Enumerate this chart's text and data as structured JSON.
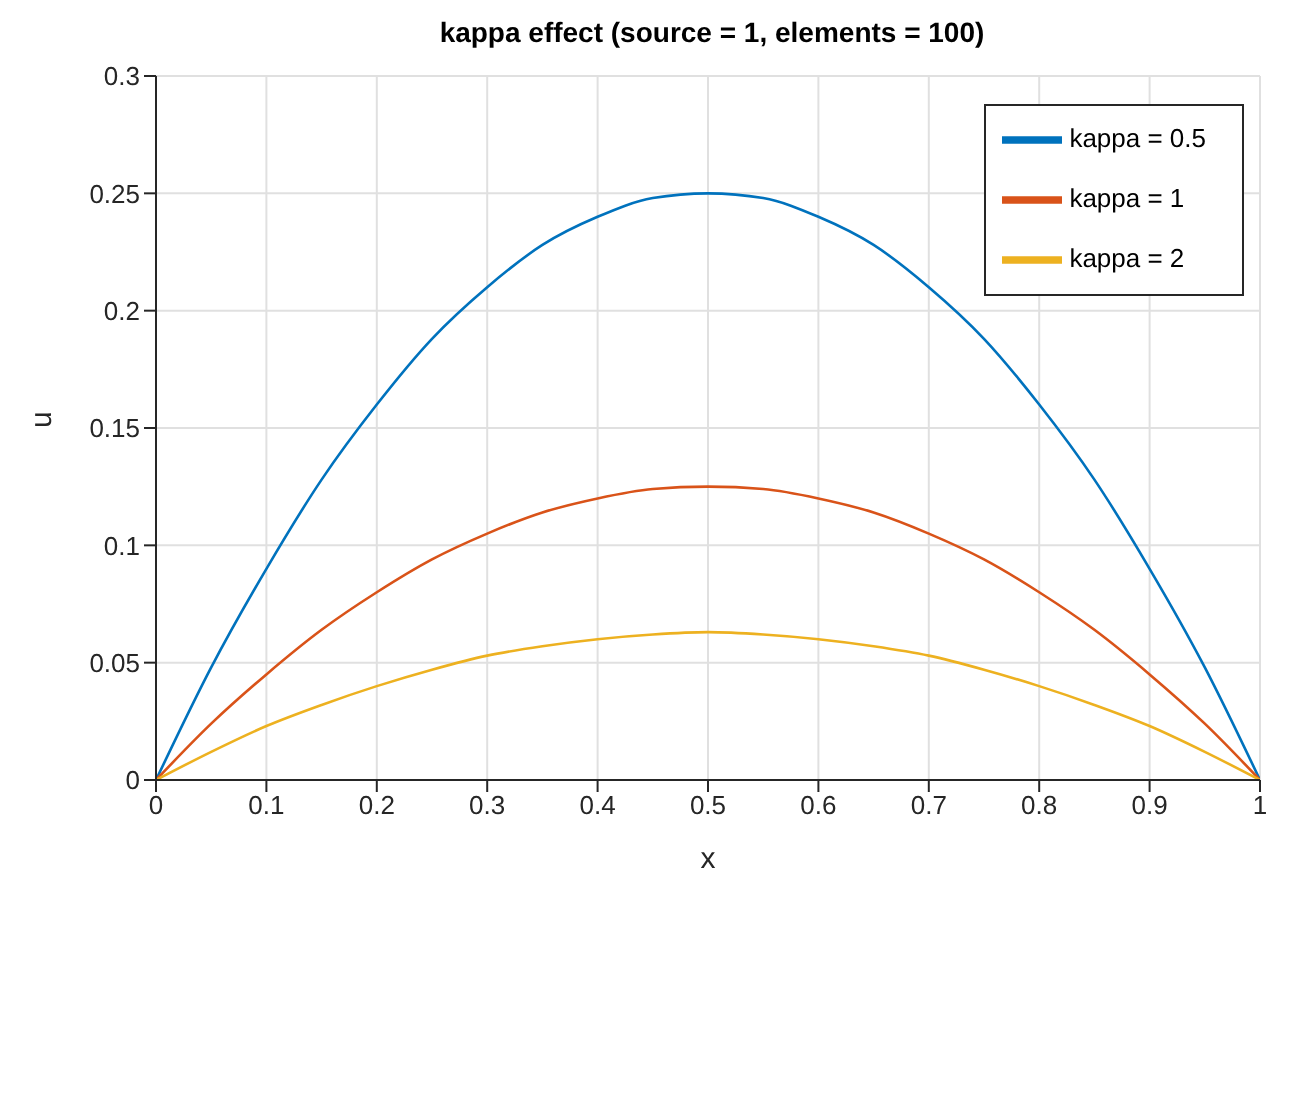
{
  "chart_data": {
    "type": "line",
    "title": "kappa effect (source = 1, elements = 100)",
    "xlabel": "x",
    "ylabel": "u",
    "x": [
      0,
      0.05,
      0.1,
      0.15,
      0.2,
      0.25,
      0.3,
      0.35,
      0.4,
      0.45,
      0.5,
      0.55,
      0.6,
      0.65,
      0.7,
      0.75,
      0.8,
      0.85,
      0.9,
      0.95,
      1
    ],
    "series": [
      {
        "name": "kappa = 0.5",
        "color": "#0072bd",
        "values": [
          0,
          0.048,
          0.09,
          0.128,
          0.16,
          0.188,
          0.21,
          0.228,
          0.24,
          0.248,
          0.25,
          0.248,
          0.24,
          0.228,
          0.21,
          0.188,
          0.16,
          0.128,
          0.09,
          0.048,
          0
        ]
      },
      {
        "name": "kappa = 1",
        "color": "#d95319",
        "values": [
          0,
          0.024,
          0.045,
          0.064,
          0.08,
          0.094,
          0.105,
          0.114,
          0.12,
          0.124,
          0.125,
          0.124,
          0.12,
          0.114,
          0.105,
          0.094,
          0.08,
          0.064,
          0.045,
          0.024,
          0
        ]
      },
      {
        "name": "kappa = 2",
        "color": "#edb120",
        "values": [
          0,
          0.012,
          0.023,
          0.032,
          0.04,
          0.047,
          0.053,
          0.057,
          0.06,
          0.062,
          0.063,
          0.062,
          0.06,
          0.057,
          0.053,
          0.047,
          0.04,
          0.032,
          0.023,
          0.012,
          0
        ]
      }
    ],
    "xlim": [
      0,
      1
    ],
    "xticks": [
      0,
      0.1,
      0.2,
      0.3,
      0.4,
      0.5,
      0.6,
      0.7,
      0.8,
      0.9,
      1
    ],
    "ylim": [
      0,
      0.3
    ],
    "yticks": [
      0,
      0.05,
      0.1,
      0.15,
      0.2,
      0.25,
      0.3
    ],
    "grid": true,
    "legend": "top right"
  }
}
